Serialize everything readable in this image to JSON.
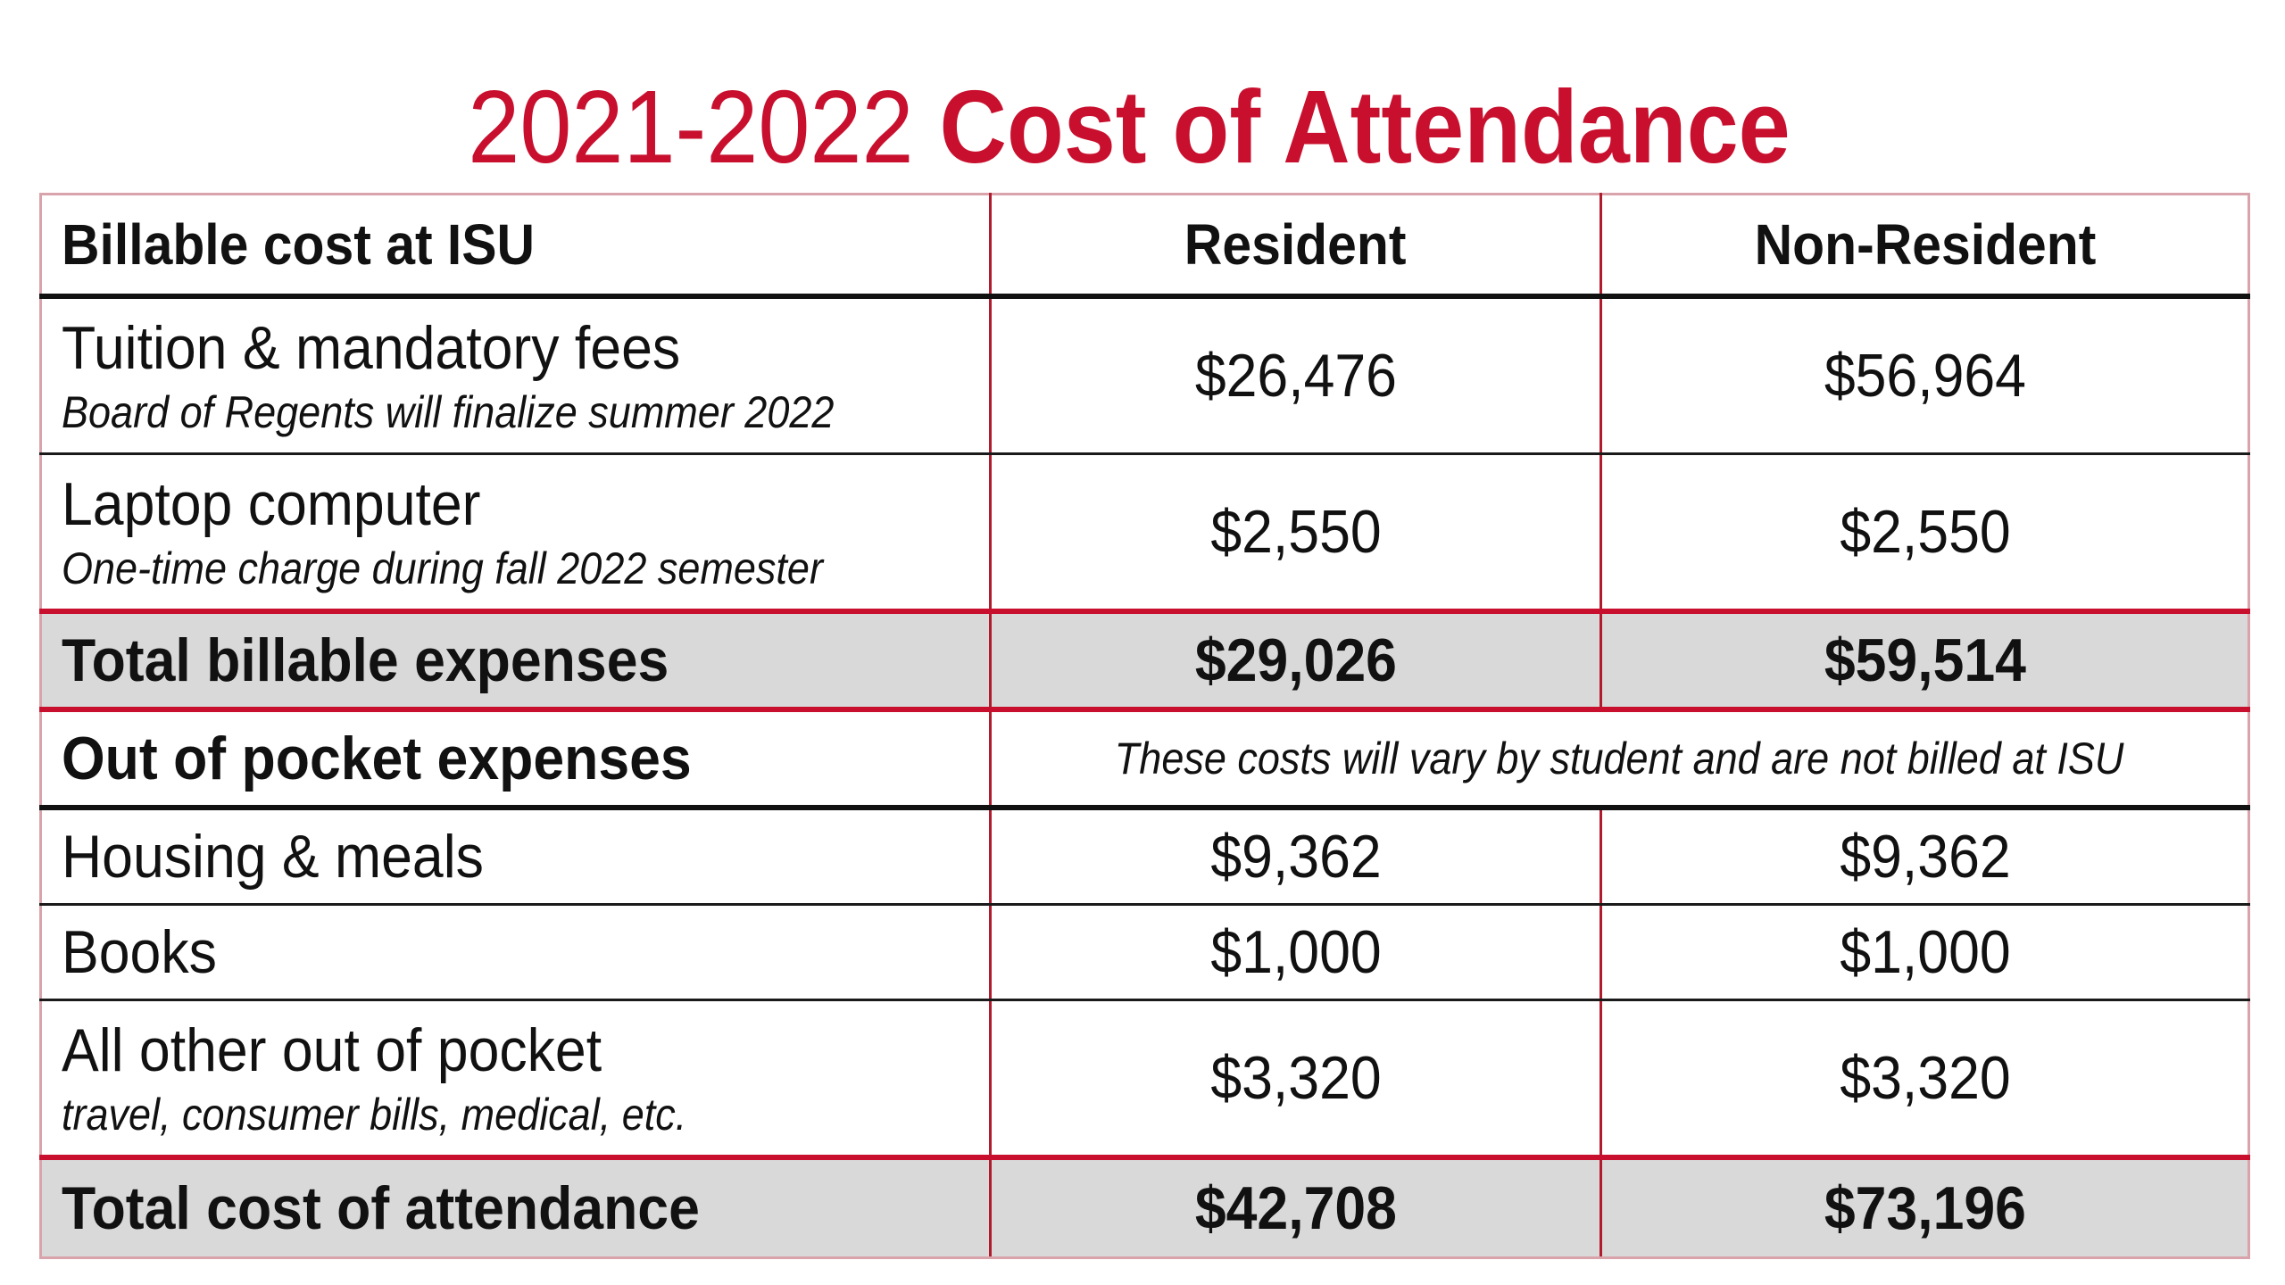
{
  "title": {
    "year": "2021-2022",
    "main": "Cost of Attendance",
    "color": "#c8102e"
  },
  "table": {
    "headers": {
      "label": "Billable cost at ISU",
      "resident": "Resident",
      "non_resident": "Non-Resident"
    },
    "rows": [
      {
        "label": "Tuition & mandatory fees",
        "sub": "Board of Regents will finalize summer 2022",
        "resident": "$26,476",
        "non_resident": "$56,964"
      },
      {
        "label": "Laptop computer",
        "sub": "One-time charge during fall 2022 semester",
        "resident": "$2,550",
        "non_resident": "$2,550"
      }
    ],
    "total_billable": {
      "label": "Total billable expenses",
      "resident": "$29,026",
      "non_resident": "$59,514"
    },
    "out_of_pocket": {
      "label": "Out of pocket expenses",
      "note": "These costs will vary by student and are not billed at ISU"
    },
    "oop_rows": [
      {
        "label": "Housing & meals",
        "resident": "$9,362",
        "non_resident": "$9,362"
      },
      {
        "label": "Books",
        "resident": "$1,000",
        "non_resident": "$1,000"
      },
      {
        "label": "All other out of pocket",
        "sub": "travel, consumer bills, medical, etc.",
        "resident": "$3,320",
        "non_resident": "$3,320"
      }
    ],
    "total_attendance": {
      "label": "Total cost of attendance",
      "resident": "$42,708",
      "non_resident": "$73,196"
    }
  }
}
